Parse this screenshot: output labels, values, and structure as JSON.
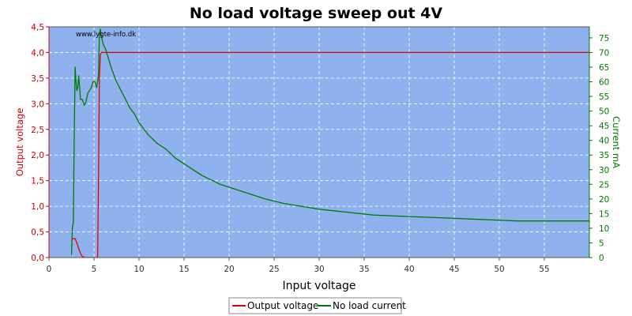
{
  "chart_data": {
    "type": "line",
    "title": "No load voltage sweep out 4V",
    "xlabel": "Input voltage",
    "ylabel_left": "Output voltage",
    "ylabel_right": "Current mA",
    "watermark": "www.lygte-info.dk",
    "xlim": [
      0,
      60
    ],
    "ylim_left": [
      0,
      4.5
    ],
    "ylim_right": [
      0,
      78.75
    ],
    "x_ticks": [
      "0",
      "5",
      "10",
      "15",
      "20",
      "25",
      "30",
      "35",
      "40",
      "45",
      "50",
      "55"
    ],
    "y_left_ticks": [
      "0,0",
      "0,5",
      "1,0",
      "1,5",
      "2,0",
      "2,5",
      "3,0",
      "3,5",
      "4,0",
      "4,5"
    ],
    "y_right_ticks": [
      "0",
      "5",
      "10",
      "15",
      "20",
      "25",
      "30",
      "35",
      "40",
      "45",
      "50",
      "55",
      "60",
      "65",
      "70",
      "75"
    ],
    "grid": true,
    "legend_position": "bottom-center",
    "colors": {
      "background": "#8fb2ee",
      "output_voltage": "#e00000",
      "no_load_current": "#007a00",
      "left_axis": "#cc0000",
      "right_axis": "#007a00"
    },
    "series": [
      {
        "name": "Output voltage",
        "axis": "left",
        "x": [
          2.5,
          2.7,
          2.9,
          3.1,
          3.3,
          3.5,
          3.7,
          4.0,
          4.5,
          5.0,
          5.3,
          5.4,
          5.5,
          5.6,
          5.7,
          5.8,
          6.0,
          10,
          20,
          30,
          40,
          50,
          60
        ],
        "values": [
          0.35,
          0.37,
          0.37,
          0.28,
          0.18,
          0.08,
          0.02,
          0.0,
          0.0,
          0.0,
          0.0,
          0.02,
          1.5,
          3.5,
          3.95,
          4.0,
          4.0,
          4.0,
          4.0,
          4.0,
          4.0,
          4.0,
          4.0
        ]
      },
      {
        "name": "No load current",
        "axis": "right",
        "x": [
          2.5,
          2.6,
          2.7,
          2.8,
          2.9,
          3.0,
          3.1,
          3.2,
          3.3,
          3.4,
          3.5,
          3.7,
          3.9,
          4.1,
          4.3,
          4.5,
          4.7,
          4.9,
          5.1,
          5.3,
          5.5,
          5.6,
          5.7,
          5.8,
          6.0,
          6.3,
          6.6,
          7.0,
          7.5,
          8.0,
          8.5,
          9.0,
          9.5,
          10,
          11,
          12,
          13,
          14,
          15,
          16,
          17,
          18,
          19,
          20,
          22,
          24,
          26,
          28,
          30,
          33,
          36,
          40,
          44,
          48,
          52,
          56,
          60
        ],
        "values": [
          1,
          10,
          12,
          40,
          65,
          60,
          57,
          58,
          62,
          58,
          54,
          54,
          52,
          53,
          56,
          57,
          58,
          60,
          60,
          58,
          62,
          76,
          78,
          76,
          73,
          71,
          68,
          64,
          60,
          57,
          54,
          51,
          49,
          46,
          42,
          39,
          37,
          34,
          32,
          30,
          28,
          26.5,
          25,
          24,
          22,
          20,
          18.5,
          17.5,
          16.5,
          15.5,
          14.5,
          14,
          13.5,
          13,
          12.5,
          12.5,
          12.5
        ]
      }
    ]
  }
}
